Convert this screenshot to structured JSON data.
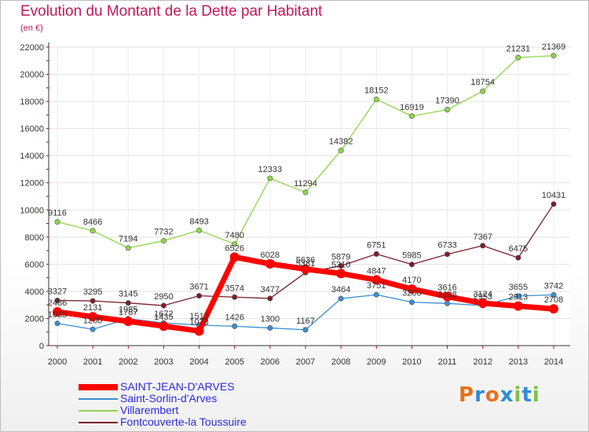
{
  "chart_data": {
    "type": "line",
    "title": "Evolution du Montant de la Dette par Habitant",
    "subtitle": "(en €)",
    "x": [
      "2000",
      "2001",
      "2002",
      "2003",
      "2004",
      "2005",
      "2006",
      "2007",
      "2008",
      "2009",
      "2010",
      "2011",
      "2012",
      "2013",
      "2014"
    ],
    "ylim": [
      0,
      22000
    ],
    "yticks": [
      "0",
      "2000",
      "4000",
      "6000",
      "8000",
      "10000",
      "12000",
      "14000",
      "16000",
      "18000",
      "20000",
      "22000"
    ],
    "grid": true,
    "legend_position": "bottom-left",
    "series": [
      {
        "name": "SAINT-JEAN-D'ARVES",
        "color": "#ff0000",
        "values": [
          2486,
          2131,
          1787,
          1435,
          1073,
          6526,
          6028,
          5636,
          5310,
          4847,
          4170,
          3616,
          3124,
          2913,
          2708
        ],
        "labels": [
          "2486",
          "2131",
          "1787",
          "1435",
          "1073",
          "6526",
          "6028",
          "5636",
          "5310",
          "4847",
          "4170",
          "3616",
          "3124",
          "2913",
          "2708"
        ]
      },
      {
        "name": "Saint-Sorlin-d'Arves",
        "color": "#3a8fd1",
        "values": [
          1633,
          1200,
          1985,
          1672,
          1513,
          1426,
          1300,
          1167,
          3464,
          3751,
          3200,
          3108,
          2953,
          3655,
          3742
        ],
        "labels": [
          "1633",
          "1200",
          "1985",
          "1672",
          "1513",
          "1426",
          "1300",
          "1167",
          "3464",
          "3751",
          "3200",
          "3108",
          "2953",
          "3655",
          "3742"
        ]
      },
      {
        "name": "Villarembert",
        "color": "#8ed64a",
        "values": [
          9116,
          8466,
          7194,
          7732,
          8493,
          7480,
          12333,
          11294,
          14382,
          18152,
          16919,
          17390,
          18754,
          21231,
          21369
        ],
        "labels": [
          "9116",
          "8466",
          "7194",
          "7732",
          "8493",
          "7480",
          "12333",
          "11294",
          "14382",
          "18152",
          "16919",
          "17390",
          "18754",
          "21231",
          "21369"
        ]
      },
      {
        "name": "Fontcouverte-la Toussuire",
        "color": "#7a1f2b",
        "values": [
          3327,
          3295,
          3145,
          2950,
          3671,
          3574,
          3477,
          5381,
          5879,
          6751,
          5985,
          6733,
          7367,
          6475,
          10431
        ],
        "labels": [
          "3327",
          "3295",
          "3145",
          "2950",
          "3671",
          "3574",
          "3477",
          "5381",
          "5879",
          "6751",
          "5985",
          "6733",
          "7367",
          "6475",
          "10431"
        ]
      }
    ]
  },
  "logo": {
    "text": "Proxiti",
    "colors": [
      "#e8701a",
      "#2e8bd6",
      "#e8701a",
      "#2e8bd6",
      "#7ac143",
      "#2e8bd6",
      "#7ac143"
    ]
  }
}
